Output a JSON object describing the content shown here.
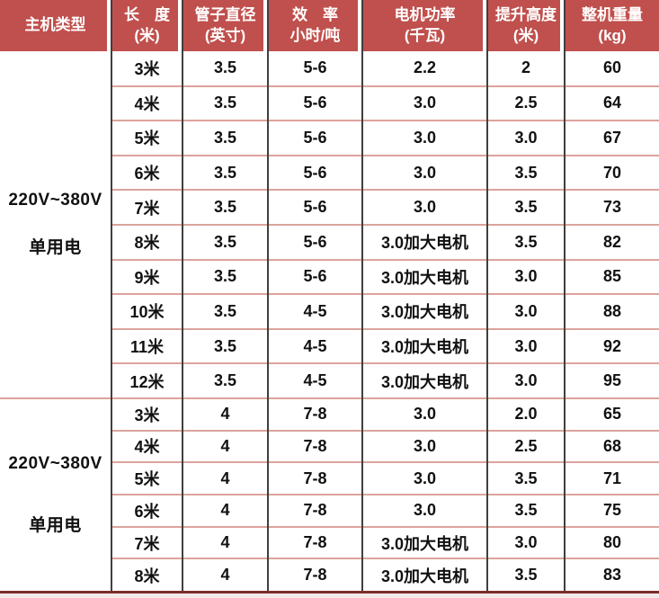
{
  "colors": {
    "header_bg": "#c0504d",
    "header_text": "#ffffff",
    "column_divider": "#3f3f3f",
    "row_divider": "#dca39d",
    "bottom_bar": "#7c2d2a",
    "page_strip": "#f3eae9",
    "body_text": "#111111"
  },
  "chart_data": {
    "type": "table",
    "title": "",
    "legend_position": "none",
    "grid": "on",
    "columns": [
      {
        "label": "主机类型",
        "line1": "主机类型",
        "line2": ""
      },
      {
        "label": "长 度(米)",
        "line1": "长　度",
        "line2": "(米)"
      },
      {
        "label": "管子直径(英寸)",
        "line1": "管子直径",
        "line2": "(英寸)"
      },
      {
        "label": "效 率 小时/吨",
        "line1": "效　率",
        "line2": "小时/吨"
      },
      {
        "label": "电机功率(千瓦)",
        "line1": "电机功率",
        "line2": "(千瓦)"
      },
      {
        "label": "提升高度(米)",
        "line1": "提升高度",
        "line2": "(米)"
      },
      {
        "label": "整机重量(kg)",
        "line1": "整机重量",
        "line2": "(kg)"
      }
    ],
    "sections": [
      {
        "group_label": [
          "220V~380V",
          "单用电"
        ],
        "rows": [
          [
            "3米",
            "3.5",
            "5-6",
            "2.2",
            "2",
            "60"
          ],
          [
            "4米",
            "3.5",
            "5-6",
            "3.0",
            "2.5",
            "64"
          ],
          [
            "5米",
            "3.5",
            "5-6",
            "3.0",
            "3.0",
            "67"
          ],
          [
            "6米",
            "3.5",
            "5-6",
            "3.0",
            "3.5",
            "70"
          ],
          [
            "7米",
            "3.5",
            "5-6",
            "3.0",
            "3.5",
            "73"
          ],
          [
            "8米",
            "3.5",
            "5-6",
            "3.0加大电机",
            "3.5",
            "82"
          ],
          [
            "9米",
            "3.5",
            "5-6",
            "3.0加大电机",
            "3.0",
            "85"
          ],
          [
            "10米",
            "3.5",
            "4-5",
            "3.0加大电机",
            "3.0",
            "88"
          ],
          [
            "11米",
            "3.5",
            "4-5",
            "3.0加大电机",
            "3.0",
            "92"
          ],
          [
            "12米",
            "3.5",
            "4-5",
            "3.0加大电机",
            "3.0",
            "95"
          ]
        ]
      },
      {
        "group_label": [
          "220V~380V",
          "单用电"
        ],
        "rows": [
          [
            "3米",
            "4",
            "7-8",
            "3.0",
            "2.0",
            "65"
          ],
          [
            "4米",
            "4",
            "7-8",
            "3.0",
            "2.5",
            "68"
          ],
          [
            "5米",
            "4",
            "7-8",
            "3.0",
            "3.5",
            "71"
          ],
          [
            "6米",
            "4",
            "7-8",
            "3.0",
            "3.5",
            "75"
          ],
          [
            "7米",
            "4",
            "7-8",
            "3.0加大电机",
            "3.0",
            "80"
          ],
          [
            "8米",
            "4",
            "7-8",
            "3.0加大电机",
            "3.5",
            "83"
          ]
        ]
      }
    ]
  }
}
